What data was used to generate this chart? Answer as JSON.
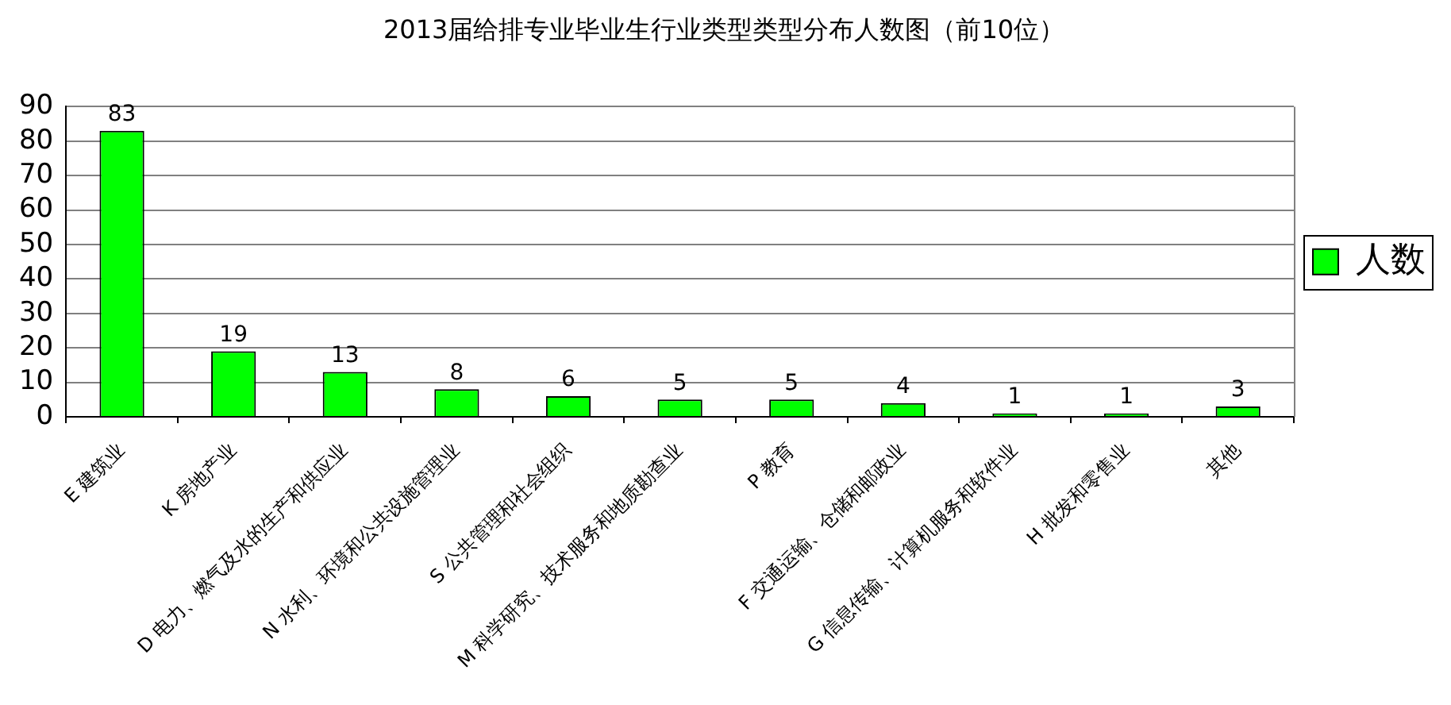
{
  "chart_data": {
    "type": "bar",
    "title": "2013届给排专业毕业生行业类型类型分布人数图（前10位）",
    "categories": [
      "E 建筑业",
      "K 房地产业",
      "D 电力、燃气及水的生产和供应业",
      "N 水利、环境和公共设施管理业",
      "S 公共管理和社会组织",
      "M 科学研究、技术服务和地质勘查业",
      "P 教育",
      "F 交通运输、仓储和邮政业",
      "G 信息传输、计算机服务和软件业",
      "H 批发和零售业",
      "其他"
    ],
    "series": [
      {
        "name": "人数",
        "color": "#00ff00",
        "values": [
          83,
          19,
          13,
          8,
          6,
          5,
          5,
          4,
          1,
          1,
          3
        ]
      }
    ],
    "ylim": [
      0,
      90
    ],
    "yticks": [
      0,
      10,
      20,
      30,
      40,
      50,
      60,
      70,
      80,
      90
    ],
    "grid": "y",
    "legend": "right",
    "data_labels": true
  }
}
